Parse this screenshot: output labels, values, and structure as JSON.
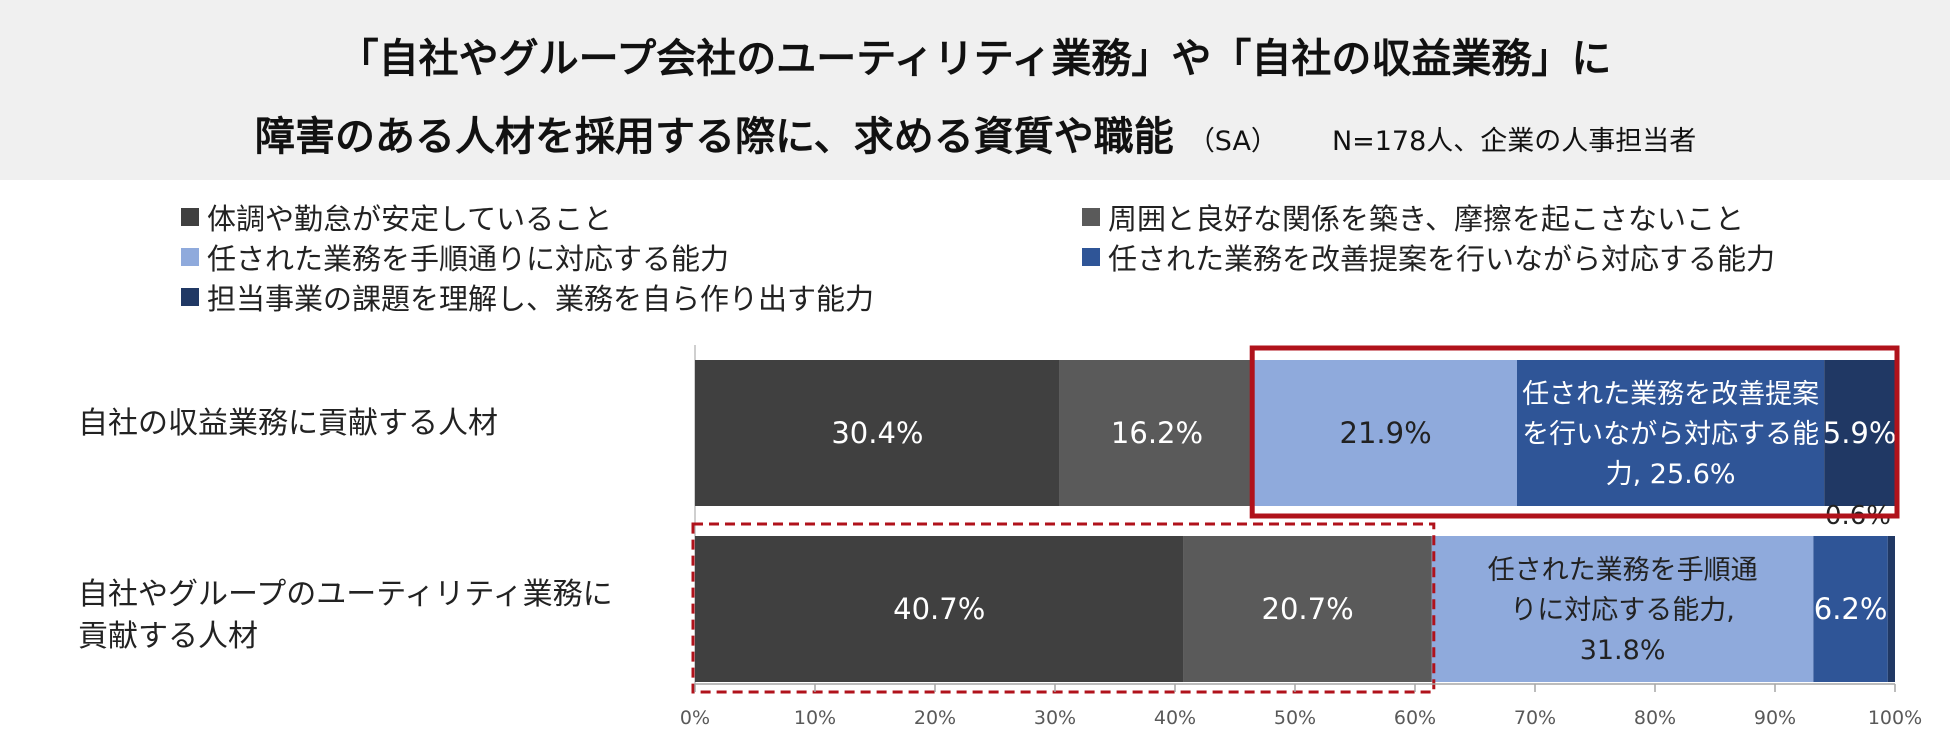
{
  "title": {
    "line1": "「自社やグループ会社のユーティリティ業務」や「自社の収益業務」に",
    "line2": "障害のある人材を採用する際に、求める資質や職能",
    "sa": "（SA）",
    "n": "N=178人、企業の人事担当者"
  },
  "chart_data": {
    "type": "bar",
    "orientation": "horizontal",
    "stacked": "100%",
    "categories": [
      "自社の収益業務に貢献する人材",
      "自社やグループのユーティリティ業務に貢献する人材"
    ],
    "category_lines": [
      [
        "自社の収益業務に貢献する人材"
      ],
      [
        "自社やグループのユーティリティ業務に",
        "貢献する人材"
      ]
    ],
    "series": [
      {
        "name": "体調や勤怠が安定していること",
        "color": "#404040",
        "values": [
          30.4,
          40.7
        ]
      },
      {
        "name": "周囲と良好な関係を築き、摩擦を起こさないこと",
        "color": "#5a5a5a",
        "values": [
          16.2,
          20.7
        ]
      },
      {
        "name": "任された業務を手順通りに対応する能力",
        "color": "#8faadc",
        "values": [
          21.9,
          31.8
        ]
      },
      {
        "name": "任された業務を改善提案を行いながら対応する能力",
        "color": "#2f5597",
        "values": [
          25.6,
          6.2
        ]
      },
      {
        "name": "担当事業の課題を理解し、業務を自ら作り出す能力",
        "color": "#203864",
        "values": [
          5.9,
          0.6
        ]
      }
    ],
    "data_labels": [
      [
        [
          "30.4%"
        ],
        [
          "16.2%"
        ],
        [
          "21.9%"
        ],
        [
          "任された業務を改善提案",
          "を行いながら対応する能",
          "力, 25.6%"
        ],
        [
          "5.9%"
        ]
      ],
      [
        [
          "40.7%"
        ],
        [
          "20.7%"
        ],
        [
          "任された業務を手順通",
          "りに対応する能力,",
          "31.8%"
        ],
        [
          "6.2%"
        ],
        [
          "0.6%"
        ]
      ]
    ],
    "xlim": [
      0,
      100
    ],
    "x_ticks": [
      "0%",
      "10%",
      "20%",
      "30%",
      "40%",
      "50%",
      "60%",
      "70%",
      "80%",
      "90%",
      "100%"
    ],
    "highlight_boxes": [
      {
        "category": "自社の収益業務に貢献する人材",
        "from": 46.6,
        "to": 100,
        "style": "solid",
        "color": "#b0121b"
      },
      {
        "category": "自社やグループのユーティリティ業務に貢献する人材",
        "from": 0,
        "to": 61.4,
        "style": "dashed",
        "color": "#b0121b"
      }
    ],
    "legend_position": "top"
  }
}
